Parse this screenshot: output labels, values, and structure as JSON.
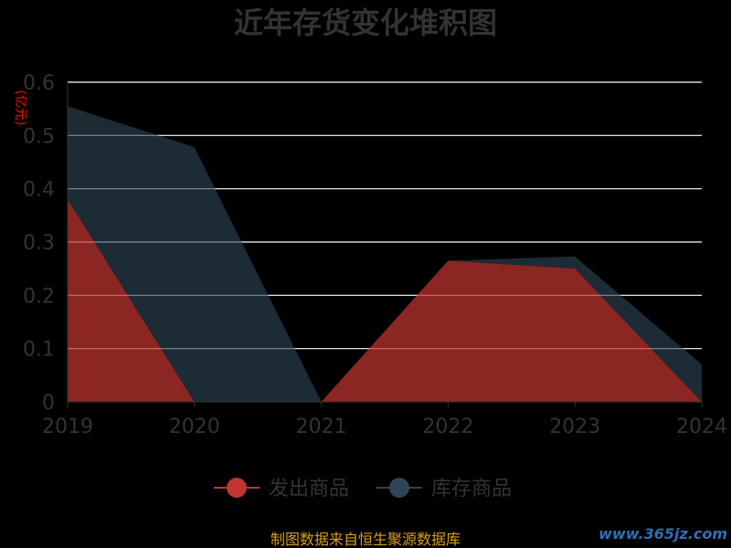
{
  "chart_data": {
    "type": "area",
    "title": "近年存货变化堆积图",
    "ylabel": "(亿元)",
    "xlabel": "",
    "categories": [
      "2019",
      "2020",
      "2021",
      "2022",
      "2023",
      "2024"
    ],
    "yticks": [
      "0",
      "0.1",
      "0.2",
      "0.3",
      "0.4",
      "0.5",
      "0.6"
    ],
    "ylim": [
      0,
      0.6
    ],
    "stacked": true,
    "grid": true,
    "legend_position": "bottom",
    "series": [
      {
        "name": "发出商品",
        "values": [
          0.38,
          0.0,
          0.0,
          0.265,
          0.25,
          0.0
        ],
        "color": "#c23531"
      },
      {
        "name": "库存商品",
        "values": [
          0.175,
          0.478,
          0.0,
          0.0,
          0.023,
          0.07
        ],
        "color": "#2f4554"
      }
    ]
  },
  "footer": {
    "source": "制图数据来自恒生聚源数据库",
    "watermark": "www.365jz.com"
  },
  "colors": {
    "background": "#000000",
    "grid": "#ffffff",
    "text": "#333333",
    "unit": "#ff0000",
    "source": "#d4a017"
  }
}
